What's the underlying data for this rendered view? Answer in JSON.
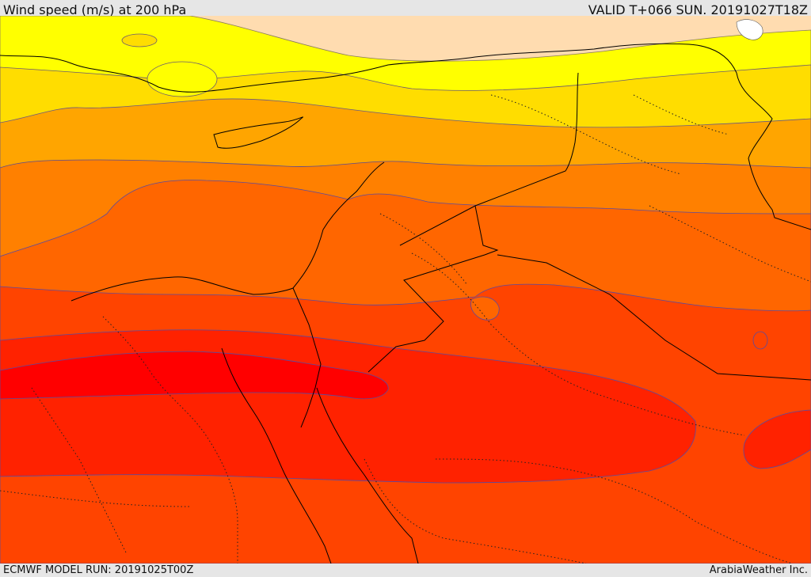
{
  "header": {
    "title": "Wind speed (m/s) at 200 hPa",
    "valid": "VALID T+066 SUN. 20191027T18Z"
  },
  "footer": {
    "model_run": "ECMWF MODEL RUN: 20191025T00Z",
    "credit": "ArabiaWeather Inc."
  },
  "colors": {
    "band_light": "#ffdcb0",
    "band_yellow": "#ffff00",
    "band_gold": "#ffdd00",
    "band_amber": "#ffa500",
    "band_orange": "#ff8000",
    "band_deep_orange": "#ff6600",
    "band_red_orange": "#ff4400",
    "band_red": "#ff2200",
    "band_max": "#ff0000",
    "contour_line": "#5a4aa0",
    "border_line": "#000000"
  }
}
